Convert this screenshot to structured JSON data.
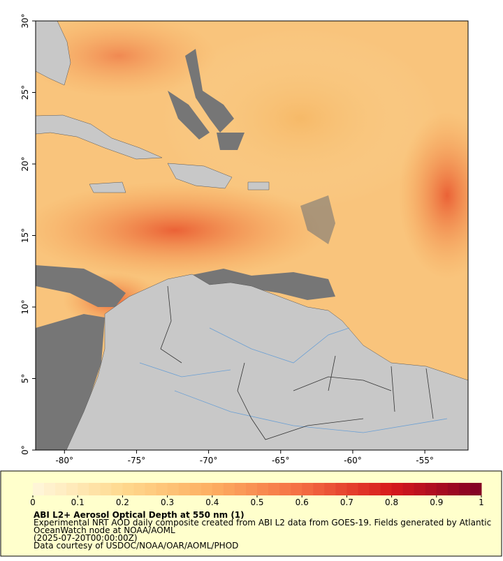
{
  "map": {
    "xlim": [
      -82,
      -52
    ],
    "ylim": [
      0,
      30
    ],
    "xticks": [
      {
        "value": -80,
        "label": "-80°"
      },
      {
        "value": -75,
        "label": "-75°"
      },
      {
        "value": -70,
        "label": "-70°"
      },
      {
        "value": -65,
        "label": "-65°"
      },
      {
        "value": -60,
        "label": "-60°"
      },
      {
        "value": -55,
        "label": "-55°"
      }
    ],
    "yticks": [
      {
        "value": 0,
        "label": "0°"
      },
      {
        "value": 5,
        "label": "5°"
      },
      {
        "value": 10,
        "label": "10°"
      },
      {
        "value": 15,
        "label": "15°"
      },
      {
        "value": 20,
        "label": "20°"
      },
      {
        "value": 25,
        "label": "25°"
      },
      {
        "value": 30,
        "label": "30°"
      }
    ]
  },
  "colorbar": {
    "lim": [
      0,
      1
    ],
    "ticks": [
      0,
      0.1,
      0.2,
      0.3,
      0.4,
      0.5,
      0.6,
      0.7,
      0.8,
      0.9,
      1
    ],
    "colors": [
      "#fff7dc",
      "#fed98e",
      "#fdae61",
      "#f46d43",
      "#d7191c",
      "#7f0025"
    ]
  },
  "caption": {
    "title": "ABI L2+ Aerosol Optical Depth at 550 nm (1)",
    "lines": [
      "Experimental NRT AOD daily composite created from ABI L2 data from GOES-19. Fields generated by Atlantic",
      "OceanWatch node at NOAA/AOML",
      "(2025-07-20T00:00:00Z)",
      "Data courtesy of USDOC/NOAA/OAR/AOML/PHOD"
    ]
  }
}
